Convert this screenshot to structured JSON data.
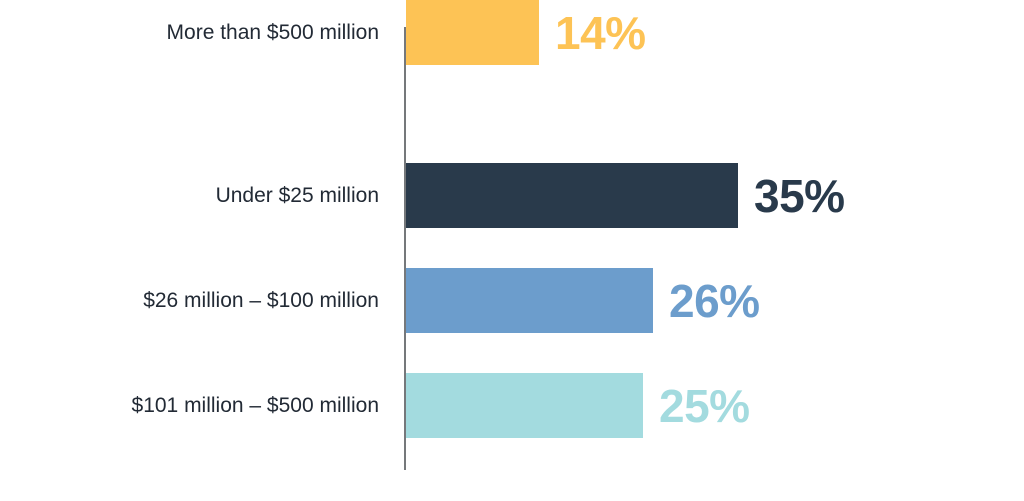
{
  "chart_data": {
    "type": "bar",
    "orientation": "horizontal",
    "categories": [
      "Under $25 million",
      "$26 million – $100 million",
      "$101 million – $500 million",
      "More than $500 million"
    ],
    "values": [
      35,
      26,
      25,
      14
    ],
    "value_labels": [
      "35%",
      "26%",
      "25%",
      "14%"
    ],
    "colors": [
      "#293A4B",
      "#6C9DCC",
      "#A3DBDF",
      "#FDC355"
    ],
    "label_color": "#222A35",
    "axis_color": "#75787B",
    "background": "#FFFFFF",
    "xlim": [
      0,
      35
    ],
    "grid": false,
    "legend": false,
    "value_label_position": "right-of-bar"
  }
}
